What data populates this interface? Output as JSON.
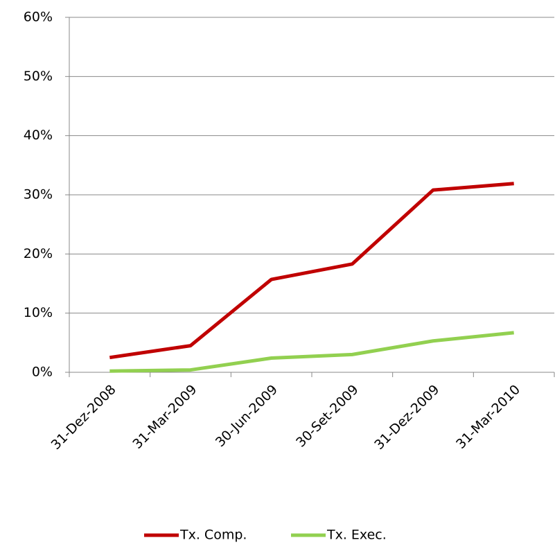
{
  "chart_data": {
    "type": "line",
    "categories": [
      "31-Dez-2008",
      "31-Mar-2009",
      "30-Jun-2009",
      "30-Set-2009",
      "31-Dez-2009",
      "31-Mar-2010"
    ],
    "series": [
      {
        "name": "Tx. Comp.",
        "color": "#c00000",
        "values": [
          2.5,
          4.5,
          15.7,
          18.3,
          30.8,
          31.9
        ]
      },
      {
        "name": "Tx. Exec.",
        "color": "#92d050",
        "values": [
          0.2,
          0.4,
          2.4,
          3.0,
          5.3,
          6.7
        ]
      }
    ],
    "ylim": [
      0,
      60
    ],
    "yticks": [
      {
        "value": 0,
        "label": "0%"
      },
      {
        "value": 10,
        "label": "10%"
      },
      {
        "value": 20,
        "label": "20%"
      },
      {
        "value": 30,
        "label": "30%"
      },
      {
        "value": 40,
        "label": "40%"
      },
      {
        "value": 50,
        "label": "50%"
      },
      {
        "value": 60,
        "label": "60%"
      }
    ],
    "grid": true,
    "legend": "bottom"
  }
}
